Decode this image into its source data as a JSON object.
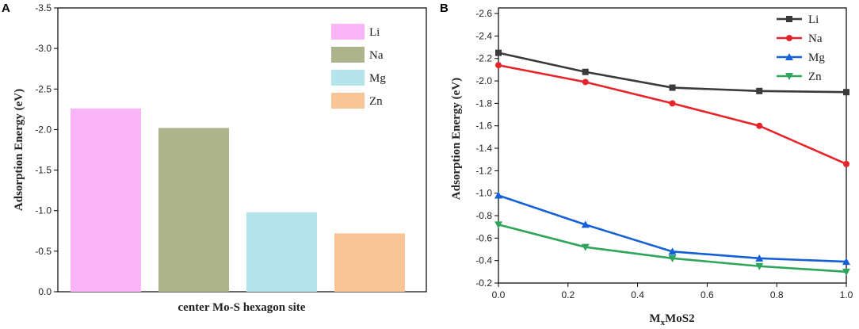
{
  "chart_data": [
    {
      "panel": "A",
      "type": "bar",
      "categories": [
        "Li",
        "Na",
        "Mg",
        "Zn"
      ],
      "values": [
        -2.26,
        -2.02,
        -0.98,
        -0.72
      ],
      "colors": [
        "#f9b5f7",
        "#adb48b",
        "#b5e5ea",
        "#f9c596"
      ],
      "title": "",
      "xlabel": "center Mo-S hexagon site",
      "ylabel": "Adsorption Energy (eV)",
      "ylim": [
        0.0,
        -3.5
      ],
      "yticks": [
        "0.0",
        "-0.5",
        "-1.0",
        "-1.5",
        "-2.0",
        "-2.5",
        "-3.0",
        "-3.5"
      ],
      "legend": {
        "position": "top-right",
        "entries": [
          "Li",
          "Na",
          "Mg",
          "Zn"
        ]
      }
    },
    {
      "panel": "B",
      "type": "line",
      "x": [
        0.0,
        0.25,
        0.5,
        0.75,
        1.0
      ],
      "series": [
        {
          "name": "Li",
          "color": "#3a3a3a",
          "marker": "square",
          "values": [
            -2.25,
            -2.08,
            -1.94,
            -1.91,
            -1.9
          ]
        },
        {
          "name": "Na",
          "color": "#e8242b",
          "marker": "circle",
          "values": [
            -2.14,
            -1.99,
            -1.8,
            -1.6,
            -1.26
          ]
        },
        {
          "name": "Mg",
          "color": "#1560d6",
          "marker": "triangle-up",
          "values": [
            -0.98,
            -0.72,
            -0.48,
            -0.42,
            -0.39
          ]
        },
        {
          "name": "Zn",
          "color": "#2ea55a",
          "marker": "triangle-down",
          "values": [
            -0.72,
            -0.52,
            -0.42,
            -0.35,
            -0.3
          ]
        }
      ],
      "title": "",
      "xlabel_main": "M",
      "xlabel_sub": "x",
      "xlabel_rest": "MoS2",
      "ylabel": "Adsorption Energy (eV)",
      "xlim": [
        0.0,
        1.0
      ],
      "ylim": [
        -0.2,
        -2.65
      ],
      "xticks": [
        "0.0",
        "0.2",
        "0.4",
        "0.6",
        "0.8",
        "1.0"
      ],
      "yticks": [
        "-0.2",
        "-0.4",
        "-0.6",
        "-0.8",
        "-1.0",
        "-1.2",
        "-1.4",
        "-1.6",
        "-1.8",
        "-2.0",
        "-2.2",
        "-2.4",
        "-2.6"
      ],
      "legend": {
        "position": "top-right",
        "entries": [
          "Li",
          "Na",
          "Mg",
          "Zn"
        ]
      }
    }
  ],
  "panel_labels": {
    "a": "A",
    "b": "B"
  }
}
